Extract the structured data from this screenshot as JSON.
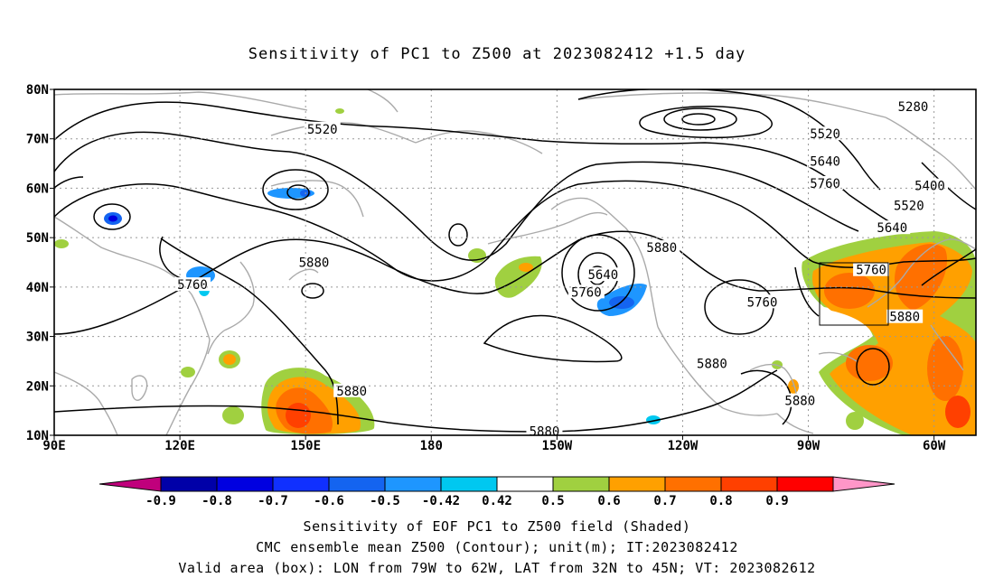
{
  "title": "Sensitivity of PC1 to Z500 at 2023082412 +1.5 day",
  "lat_labels": [
    "80N",
    "70N",
    "60N",
    "50N",
    "40N",
    "30N",
    "20N",
    "10N"
  ],
  "lon_labels": [
    "90E",
    "120E",
    "150E",
    "180",
    "150W",
    "120W",
    "90W",
    "60W"
  ],
  "contour_labels": [
    {
      "text": "5280",
      "lon": 295,
      "lat": 76.5
    },
    {
      "text": "5520",
      "lon": 154,
      "lat": 72
    },
    {
      "text": "5520",
      "lon": 274,
      "lat": 71
    },
    {
      "text": "5640",
      "lon": 274,
      "lat": 65.5
    },
    {
      "text": "5760",
      "lon": 274,
      "lat": 61
    },
    {
      "text": "5400",
      "lon": 299,
      "lat": 60.5
    },
    {
      "text": "5520",
      "lon": 294,
      "lat": 56.5
    },
    {
      "text": "5640",
      "lon": 290,
      "lat": 52
    },
    {
      "text": "5880",
      "lon": 235,
      "lat": 48
    },
    {
      "text": "5880",
      "lon": 152,
      "lat": 45
    },
    {
      "text": "5640",
      "lon": 221,
      "lat": 42.5
    },
    {
      "text": "5760",
      "lon": 123,
      "lat": 40.5
    },
    {
      "text": "5760",
      "lon": 217,
      "lat": 39
    },
    {
      "text": "5760",
      "lon": 259,
      "lat": 37
    },
    {
      "text": "5760",
      "lon": 285,
      "lat": 43.5
    },
    {
      "text": "5880",
      "lon": 293,
      "lat": 34
    },
    {
      "text": "5880",
      "lon": 247,
      "lat": 24.5
    },
    {
      "text": "5880",
      "lon": 161,
      "lat": 19
    },
    {
      "text": "5880",
      "lon": 268,
      "lat": 17
    },
    {
      "text": "5880",
      "lon": 207,
      "lat": 10.8
    }
  ],
  "colorbar": {
    "labels": [
      "-0.9",
      "-0.8",
      "-0.7",
      "-0.6",
      "-0.5",
      "-0.42",
      "0.42",
      "0.5",
      "0.6",
      "0.7",
      "0.8",
      "0.9"
    ],
    "colors": [
      "#c0007c",
      "#0000a8",
      "#0000e0",
      "#1030ff",
      "#1464f0",
      "#1e96ff",
      "#00c8f0",
      "#ffffff",
      "#a0d040",
      "#ffa000",
      "#ff7000",
      "#ff4000",
      "#ff0000",
      "#ff96c8"
    ]
  },
  "footer": [
    "Sensitivity of EOF PC1 to Z500 field (Shaded)",
    "CMC ensemble mean Z500 (Contour); unit(m); IT:2023082412",
    "Valid area (box): LON from 79W to 62W, LAT from 32N to 45N; VT: 2023082612"
  ]
}
